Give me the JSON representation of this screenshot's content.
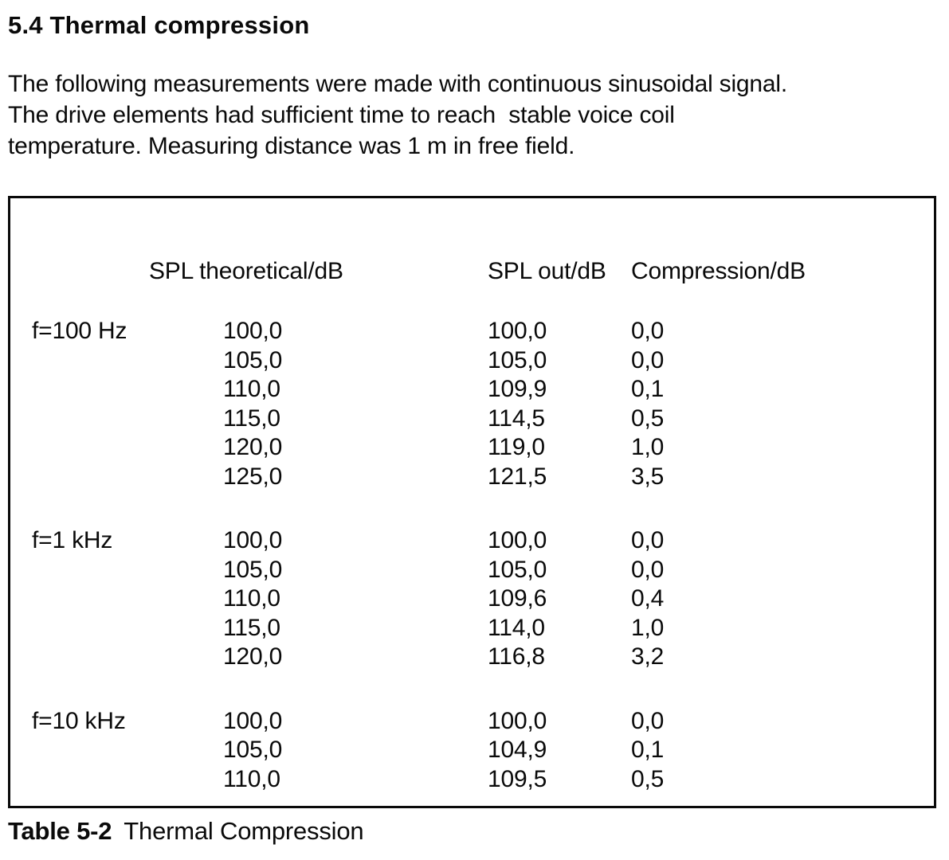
{
  "page": {
    "section_heading": "5.4 Thermal compression",
    "paragraph_lines": [
      "The following measurements were made with continuous sinusoidal signal.",
      "The drive elements had sufficient time to reach  stable voice coil",
      "temperature. Measuring distance was 1 m in free field."
    ]
  },
  "table": {
    "columns": [
      "SPL theoretical/dB",
      "SPL out/dB",
      "Compression/dB"
    ],
    "groups": [
      {
        "frequency": "f=100 Hz",
        "rows": [
          [
            "100,0",
            "100,0",
            "0,0"
          ],
          [
            "105,0",
            "105,0",
            "0,0"
          ],
          [
            "110,0",
            "109,9",
            "0,1"
          ],
          [
            "115,0",
            "114,5",
            "0,5"
          ],
          [
            "120,0",
            "119,0",
            "1,0"
          ],
          [
            "125,0",
            "121,5",
            "3,5"
          ]
        ]
      },
      {
        "frequency": "f=1 kHz",
        "rows": [
          [
            "100,0",
            "100,0",
            "0,0"
          ],
          [
            "105,0",
            "105,0",
            "0,0"
          ],
          [
            "110,0",
            "109,6",
            "0,4"
          ],
          [
            "115,0",
            "114,0",
            "1,0"
          ],
          [
            "120,0",
            "116,8",
            "3,2"
          ]
        ]
      },
      {
        "frequency": "f=10 kHz",
        "rows": [
          [
            "100,0",
            "100,0",
            "0,0"
          ],
          [
            "105,0",
            "104,9",
            "0,1"
          ],
          [
            "110,0",
            "109,5",
            "0,5"
          ]
        ]
      }
    ],
    "caption_label": "Table 5-2",
    "caption_text": "Thermal Compression"
  },
  "colors": {
    "ink": "#0a0a0a",
    "paper": "#ffffff"
  }
}
